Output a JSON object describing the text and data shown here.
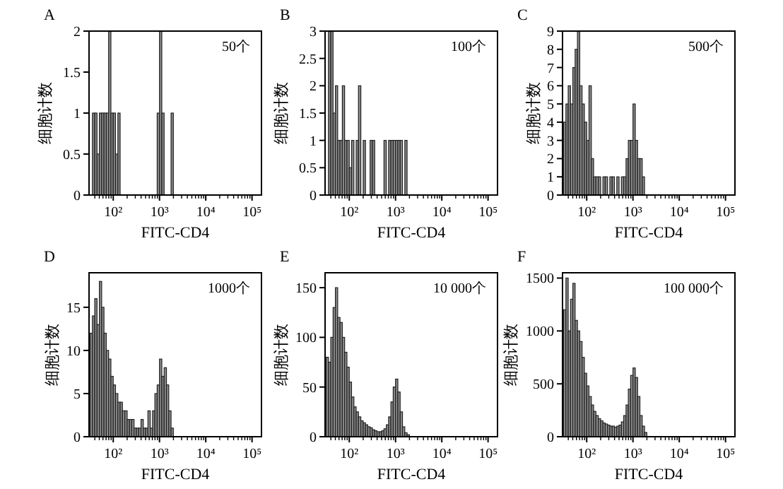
{
  "chart_data": [
    {
      "type": "histogram",
      "title": "A",
      "xlabel": "FITC-CD4",
      "ylabel": "细胞计数",
      "annotations": [
        "50个"
      ],
      "color": "#8a8a8a",
      "xlim": [
        30,
        160000
      ],
      "xticks": [
        {
          "value": 100,
          "label": "10²"
        },
        {
          "value": 1000,
          "label": "10³"
        },
        {
          "value": 10000,
          "label": "10⁴"
        },
        {
          "value": 100000,
          "label": "10⁵"
        }
      ],
      "ylim": [
        0,
        2
      ],
      "yticks": [
        0,
        0.5,
        1,
        1.5,
        2
      ],
      "bins": [
        31.6,
        35.5,
        39.8,
        44.7,
        50.1,
        56.2,
        63.1,
        70.8,
        79.4,
        89.1,
        100,
        112,
        126,
        141,
        158,
        178,
        200,
        224,
        251,
        282,
        316,
        355,
        398,
        447,
        501,
        562,
        631,
        708,
        794,
        891,
        1000,
        1122,
        1259,
        1413,
        1585,
        1778,
        1995,
        2239,
        2512,
        2818,
        3162
      ],
      "values": [
        0,
        1,
        1,
        0.5,
        1,
        1,
        1,
        1,
        2,
        1,
        1,
        0.5,
        1,
        0,
        0,
        0,
        0,
        0,
        0,
        0,
        0,
        0,
        0,
        0,
        0,
        0,
        0,
        0,
        0,
        1,
        2,
        1,
        0,
        0,
        0,
        1,
        0,
        0,
        0,
        0
      ],
      "log": "x"
    },
    {
      "type": "histogram",
      "title": "B",
      "xlabel": "FITC-CD4",
      "ylabel": "细胞计数",
      "annotations": [
        "100个"
      ],
      "color": "#8a8a8a",
      "xlim": [
        30,
        160000
      ],
      "xticks": [
        {
          "value": 100,
          "label": "10²"
        },
        {
          "value": 1000,
          "label": "10³"
        },
        {
          "value": 10000,
          "label": "10⁴"
        },
        {
          "value": 100000,
          "label": "10⁵"
        }
      ],
      "ylim": [
        0,
        3
      ],
      "yticks": [
        0,
        0.5,
        1,
        1.5,
        2,
        2.5,
        3
      ],
      "bins": [
        31.6,
        35.5,
        39.8,
        44.7,
        50.1,
        56.2,
        63.1,
        70.8,
        79.4,
        89.1,
        100,
        112,
        126,
        141,
        158,
        178,
        200,
        224,
        251,
        282,
        316,
        355,
        398,
        447,
        501,
        562,
        631,
        708,
        794,
        891,
        1000,
        1122,
        1259,
        1413,
        1585,
        1778,
        1995,
        2239,
        2512,
        2818,
        3162
      ],
      "values": [
        0,
        3,
        3,
        1.5,
        2,
        1,
        1,
        2,
        1,
        1,
        0.5,
        1,
        0,
        1,
        2,
        0,
        1,
        0,
        0,
        1,
        1,
        0,
        0,
        0,
        0,
        1,
        0,
        1,
        1,
        1,
        1,
        1,
        1,
        0,
        1,
        0,
        0,
        0,
        0,
        0
      ],
      "log": "x"
    },
    {
      "type": "histogram",
      "title": "C",
      "xlabel": "FITC-CD4",
      "ylabel": "细胞计数",
      "annotations": [
        "500个"
      ],
      "color": "#8a8a8a",
      "xlim": [
        30,
        160000
      ],
      "xticks": [
        {
          "value": 100,
          "label": "10²"
        },
        {
          "value": 1000,
          "label": "10³"
        },
        {
          "value": 10000,
          "label": "10⁴"
        },
        {
          "value": 100000,
          "label": "10⁵"
        }
      ],
      "ylim": [
        0,
        9
      ],
      "yticks": [
        0,
        1,
        2,
        3,
        4,
        5,
        6,
        7,
        8,
        9
      ],
      "bins": [
        31.6,
        35.5,
        39.8,
        44.7,
        50.1,
        56.2,
        63.1,
        70.8,
        79.4,
        89.1,
        100,
        112,
        126,
        141,
        158,
        178,
        200,
        224,
        251,
        282,
        316,
        355,
        398,
        447,
        501,
        562,
        631,
        708,
        794,
        891,
        1000,
        1122,
        1259,
        1413,
        1585,
        1778,
        1995,
        2239,
        2512,
        2818,
        3162
      ],
      "values": [
        4,
        5,
        6,
        5,
        7,
        8,
        9,
        6,
        5,
        4,
        3,
        6,
        2,
        1,
        1,
        1,
        0,
        1,
        1,
        0,
        1,
        1,
        0,
        1,
        0,
        1,
        1,
        2,
        3,
        3,
        5,
        3,
        2,
        2,
        1,
        0,
        0,
        0,
        0,
        0
      ],
      "log": "x"
    },
    {
      "type": "histogram",
      "title": "D",
      "xlabel": "FITC-CD4",
      "ylabel": "细胞计数",
      "annotations": [
        "1000个"
      ],
      "color": "#8a8a8a",
      "xlim": [
        30,
        160000
      ],
      "xticks": [
        {
          "value": 100,
          "label": "10²"
        },
        {
          "value": 1000,
          "label": "10³"
        },
        {
          "value": 10000,
          "label": "10⁴"
        },
        {
          "value": 100000,
          "label": "10⁵"
        }
      ],
      "ylim": [
        0,
        19
      ],
      "yticks": [
        0,
        5,
        10,
        15
      ],
      "bins": [
        31.6,
        35.5,
        39.8,
        44.7,
        50.1,
        56.2,
        63.1,
        70.8,
        79.4,
        89.1,
        100,
        112,
        126,
        141,
        158,
        178,
        200,
        224,
        251,
        282,
        316,
        355,
        398,
        447,
        501,
        562,
        631,
        708,
        794,
        891,
        1000,
        1122,
        1259,
        1413,
        1585,
        1778,
        1995,
        2239,
        2512,
        2818,
        3162
      ],
      "values": [
        12,
        14,
        16,
        13,
        18,
        15,
        12,
        10,
        9,
        7,
        6,
        5,
        4,
        4,
        3,
        3,
        2,
        2,
        2,
        1,
        1,
        1,
        2,
        1,
        1,
        3,
        1,
        3,
        5,
        6,
        9,
        7,
        8,
        6,
        3,
        1,
        0,
        0,
        0,
        0
      ],
      "log": "x"
    },
    {
      "type": "histogram",
      "title": "E",
      "xlabel": "FITC-CD4",
      "ylabel": "细胞计数",
      "annotations": [
        "10 000个"
      ],
      "color": "#8a8a8a",
      "xlim": [
        30,
        160000
      ],
      "xticks": [
        {
          "value": 100,
          "label": "10²"
        },
        {
          "value": 1000,
          "label": "10³"
        },
        {
          "value": 10000,
          "label": "10⁴"
        },
        {
          "value": 100000,
          "label": "10⁵"
        }
      ],
      "ylim": [
        0,
        165
      ],
      "yticks": [
        0,
        50,
        100,
        150
      ],
      "bins": [
        31.6,
        35.5,
        39.8,
        44.7,
        50.1,
        56.2,
        63.1,
        70.8,
        79.4,
        89.1,
        100,
        112,
        126,
        141,
        158,
        178,
        200,
        224,
        251,
        282,
        316,
        355,
        398,
        447,
        501,
        562,
        631,
        708,
        794,
        891,
        1000,
        1122,
        1259,
        1413,
        1585,
        1778,
        1995,
        2239,
        2512,
        2818,
        3162
      ],
      "values": [
        80,
        75,
        100,
        130,
        150,
        120,
        115,
        100,
        85,
        70,
        55,
        40,
        30,
        25,
        20,
        16,
        14,
        12,
        10,
        9,
        7,
        6,
        5,
        5,
        6,
        8,
        12,
        20,
        35,
        50,
        58,
        45,
        25,
        10,
        4,
        2,
        0,
        0,
        0,
        0
      ],
      "log": "x"
    },
    {
      "type": "histogram",
      "title": "F",
      "xlabel": "FITC-CD4",
      "ylabel": "细胞计数",
      "annotations": [
        "100 000个"
      ],
      "color": "#8a8a8a",
      "xlim": [
        30,
        160000
      ],
      "xticks": [
        {
          "value": 100,
          "label": "10²"
        },
        {
          "value": 1000,
          "label": "10³"
        },
        {
          "value": 10000,
          "label": "10⁴"
        },
        {
          "value": 100000,
          "label": "10⁵"
        }
      ],
      "ylim": [
        0,
        1550
      ],
      "yticks": [
        0,
        500,
        1000,
        1500
      ],
      "bins": [
        31.6,
        35.5,
        39.8,
        44.7,
        50.1,
        56.2,
        63.1,
        70.8,
        79.4,
        89.1,
        100,
        112,
        126,
        141,
        158,
        178,
        200,
        224,
        251,
        282,
        316,
        355,
        398,
        447,
        501,
        562,
        631,
        708,
        794,
        891,
        1000,
        1122,
        1259,
        1413,
        1585,
        1778,
        1995,
        2239,
        2512,
        2818,
        3162
      ],
      "values": [
        1200,
        1500,
        1000,
        1300,
        1450,
        1100,
        1000,
        900,
        750,
        600,
        480,
        380,
        300,
        240,
        200,
        170,
        150,
        130,
        120,
        110,
        100,
        100,
        90,
        100,
        110,
        140,
        200,
        300,
        450,
        580,
        650,
        560,
        380,
        200,
        100,
        40,
        0,
        0,
        0,
        0
      ],
      "log": "x"
    }
  ]
}
